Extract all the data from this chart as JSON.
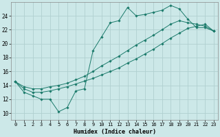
{
  "xlabel": "Humidex (Indice chaleur)",
  "bg_color": "#cce8e8",
  "grid_color": "#b0d0d0",
  "line_color": "#1a7a6a",
  "marker_color": "#1a7a6a",
  "xlim": [
    -0.5,
    23.5
  ],
  "ylim": [
    9,
    26
  ],
  "yticks": [
    10,
    12,
    14,
    16,
    18,
    20,
    22,
    24
  ],
  "xticks": [
    0,
    1,
    2,
    3,
    4,
    5,
    6,
    7,
    8,
    9,
    10,
    11,
    12,
    13,
    14,
    15,
    16,
    17,
    18,
    19,
    20,
    21,
    22,
    23
  ],
  "series": [
    {
      "x": [
        0,
        1,
        2,
        3,
        4,
        5,
        6,
        7,
        8,
        9,
        10,
        11,
        12,
        13,
        14,
        15,
        16,
        17,
        18,
        19,
        20,
        21,
        22,
        23
      ],
      "y": [
        14.5,
        13.0,
        12.5,
        12.0,
        12.0,
        10.2,
        10.8,
        13.2,
        13.5,
        19.0,
        21.0,
        23.0,
        23.3,
        25.2,
        24.0,
        24.2,
        24.5,
        24.8,
        25.5,
        25.0,
        23.5,
        22.3,
        22.3,
        21.8
      ]
    },
    {
      "x": [
        0,
        1,
        2,
        3,
        4,
        5,
        6,
        7,
        8,
        9,
        10,
        11,
        12,
        13,
        14,
        15,
        16,
        17,
        18,
        19,
        20,
        21,
        22,
        23
      ],
      "y": [
        14.5,
        13.5,
        13.0,
        13.0,
        13.2,
        13.5,
        13.8,
        14.2,
        14.6,
        15.0,
        15.5,
        16.0,
        16.5,
        17.2,
        17.8,
        18.5,
        19.2,
        20.0,
        20.8,
        21.5,
        22.2,
        22.5,
        22.8,
        21.8
      ]
    },
    {
      "x": [
        0,
        1,
        2,
        3,
        4,
        5,
        6,
        7,
        8,
        9,
        10,
        11,
        12,
        13,
        14,
        15,
        16,
        17,
        18,
        19,
        20,
        21,
        22,
        23
      ],
      "y": [
        14.5,
        13.8,
        13.5,
        13.5,
        13.8,
        14.0,
        14.3,
        14.8,
        15.3,
        16.0,
        16.8,
        17.5,
        18.2,
        19.0,
        19.8,
        20.5,
        21.2,
        22.0,
        22.8,
        23.3,
        23.0,
        22.8,
        22.5,
        21.8
      ]
    }
  ]
}
